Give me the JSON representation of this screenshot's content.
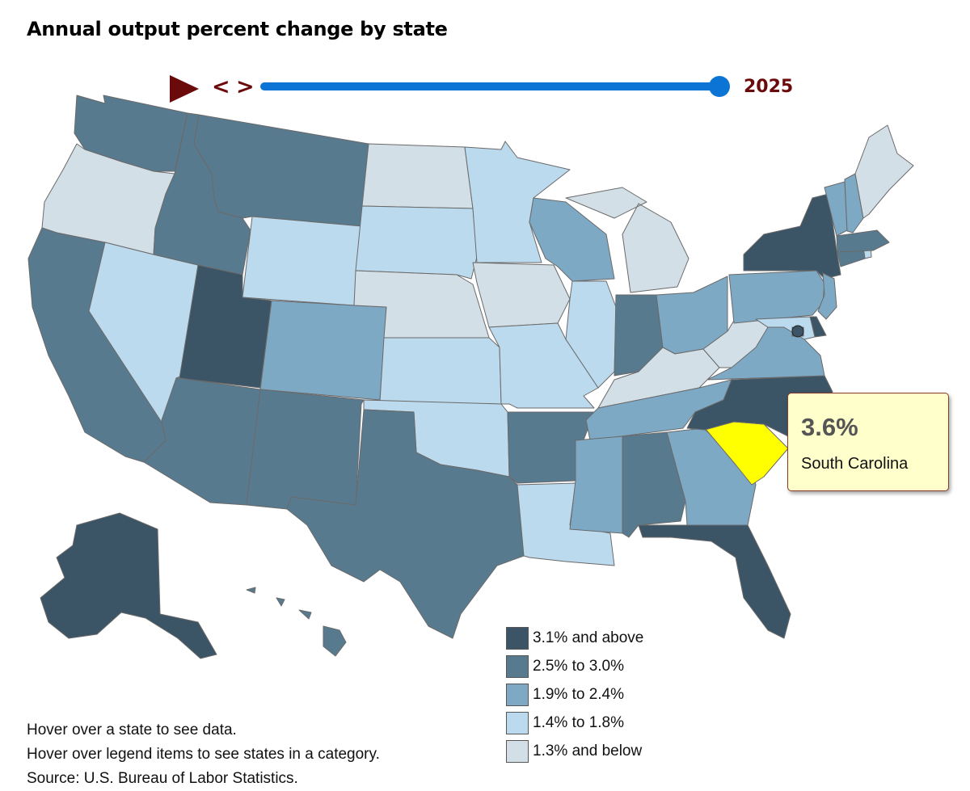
{
  "title": "Annual output percent change by state",
  "controls": {
    "prev_label": "<",
    "next_label": ">",
    "year": "2025",
    "slider_position": 1.0
  },
  "tooltip": {
    "value": "3.6%",
    "state": "South Carolina"
  },
  "legend": [
    {
      "label": "3.1% and above",
      "color": "#3b5466"
    },
    {
      "label": "2.5% to 3.0%",
      "color": "#587a8f"
    },
    {
      "label": "1.9% to 2.4%",
      "color": "#7ea9c5"
    },
    {
      "label": "1.4% to 1.8%",
      "color": "#bcdaee"
    },
    {
      "label": "1.3% and below",
      "color": "#d3dfe7"
    }
  ],
  "highlight_color": "#ffff00",
  "notes": {
    "hover_state": "Hover over a state to see data.",
    "hover_legend": "Hover over legend items to see states in a category.",
    "source": "Source: U.S. Bureau of Labor Statistics."
  },
  "states": [
    {
      "name": "Washington",
      "category": 1
    },
    {
      "name": "Oregon",
      "category": 4
    },
    {
      "name": "California",
      "category": 1
    },
    {
      "name": "Nevada",
      "category": 3
    },
    {
      "name": "Idaho",
      "category": 1
    },
    {
      "name": "Montana",
      "category": 1
    },
    {
      "name": "Wyoming",
      "category": 3
    },
    {
      "name": "Utah",
      "category": 0
    },
    {
      "name": "Arizona",
      "category": 1
    },
    {
      "name": "Colorado",
      "category": 2
    },
    {
      "name": "New Mexico",
      "category": 1
    },
    {
      "name": "North Dakota",
      "category": 4
    },
    {
      "name": "South Dakota",
      "category": 3
    },
    {
      "name": "Nebraska",
      "category": 4
    },
    {
      "name": "Kansas",
      "category": 3
    },
    {
      "name": "Oklahoma",
      "category": 3
    },
    {
      "name": "Texas",
      "category": 1
    },
    {
      "name": "Minnesota",
      "category": 3
    },
    {
      "name": "Iowa",
      "category": 4
    },
    {
      "name": "Missouri",
      "category": 3
    },
    {
      "name": "Arkansas",
      "category": 1
    },
    {
      "name": "Louisiana",
      "category": 3
    },
    {
      "name": "Wisconsin",
      "category": 2
    },
    {
      "name": "Illinois",
      "category": 3
    },
    {
      "name": "Michigan",
      "category": 4
    },
    {
      "name": "Indiana",
      "category": 1
    },
    {
      "name": "Ohio",
      "category": 2
    },
    {
      "name": "Kentucky",
      "category": 4
    },
    {
      "name": "Tennessee",
      "category": 2
    },
    {
      "name": "Mississippi",
      "category": 2
    },
    {
      "name": "Alabama",
      "category": 1
    },
    {
      "name": "Georgia",
      "category": 2
    },
    {
      "name": "Florida",
      "category": 0
    },
    {
      "name": "South Carolina",
      "category": "highlight"
    },
    {
      "name": "North Carolina",
      "category": 0
    },
    {
      "name": "Virginia",
      "category": 2
    },
    {
      "name": "West Virginia",
      "category": 4
    },
    {
      "name": "Pennsylvania",
      "category": 2
    },
    {
      "name": "New York",
      "category": 0
    },
    {
      "name": "New Jersey",
      "category": 2
    },
    {
      "name": "Delaware",
      "category": 0
    },
    {
      "name": "Maryland",
      "category": 3
    },
    {
      "name": "District of Columbia",
      "category": 0
    },
    {
      "name": "Connecticut",
      "category": 1
    },
    {
      "name": "Rhode Island",
      "category": 3
    },
    {
      "name": "Massachusetts",
      "category": 1
    },
    {
      "name": "Vermont",
      "category": 2
    },
    {
      "name": "New Hampshire",
      "category": 2
    },
    {
      "name": "Maine",
      "category": 4
    },
    {
      "name": "Alaska",
      "category": 0
    },
    {
      "name": "Hawaii",
      "category": 1
    }
  ]
}
